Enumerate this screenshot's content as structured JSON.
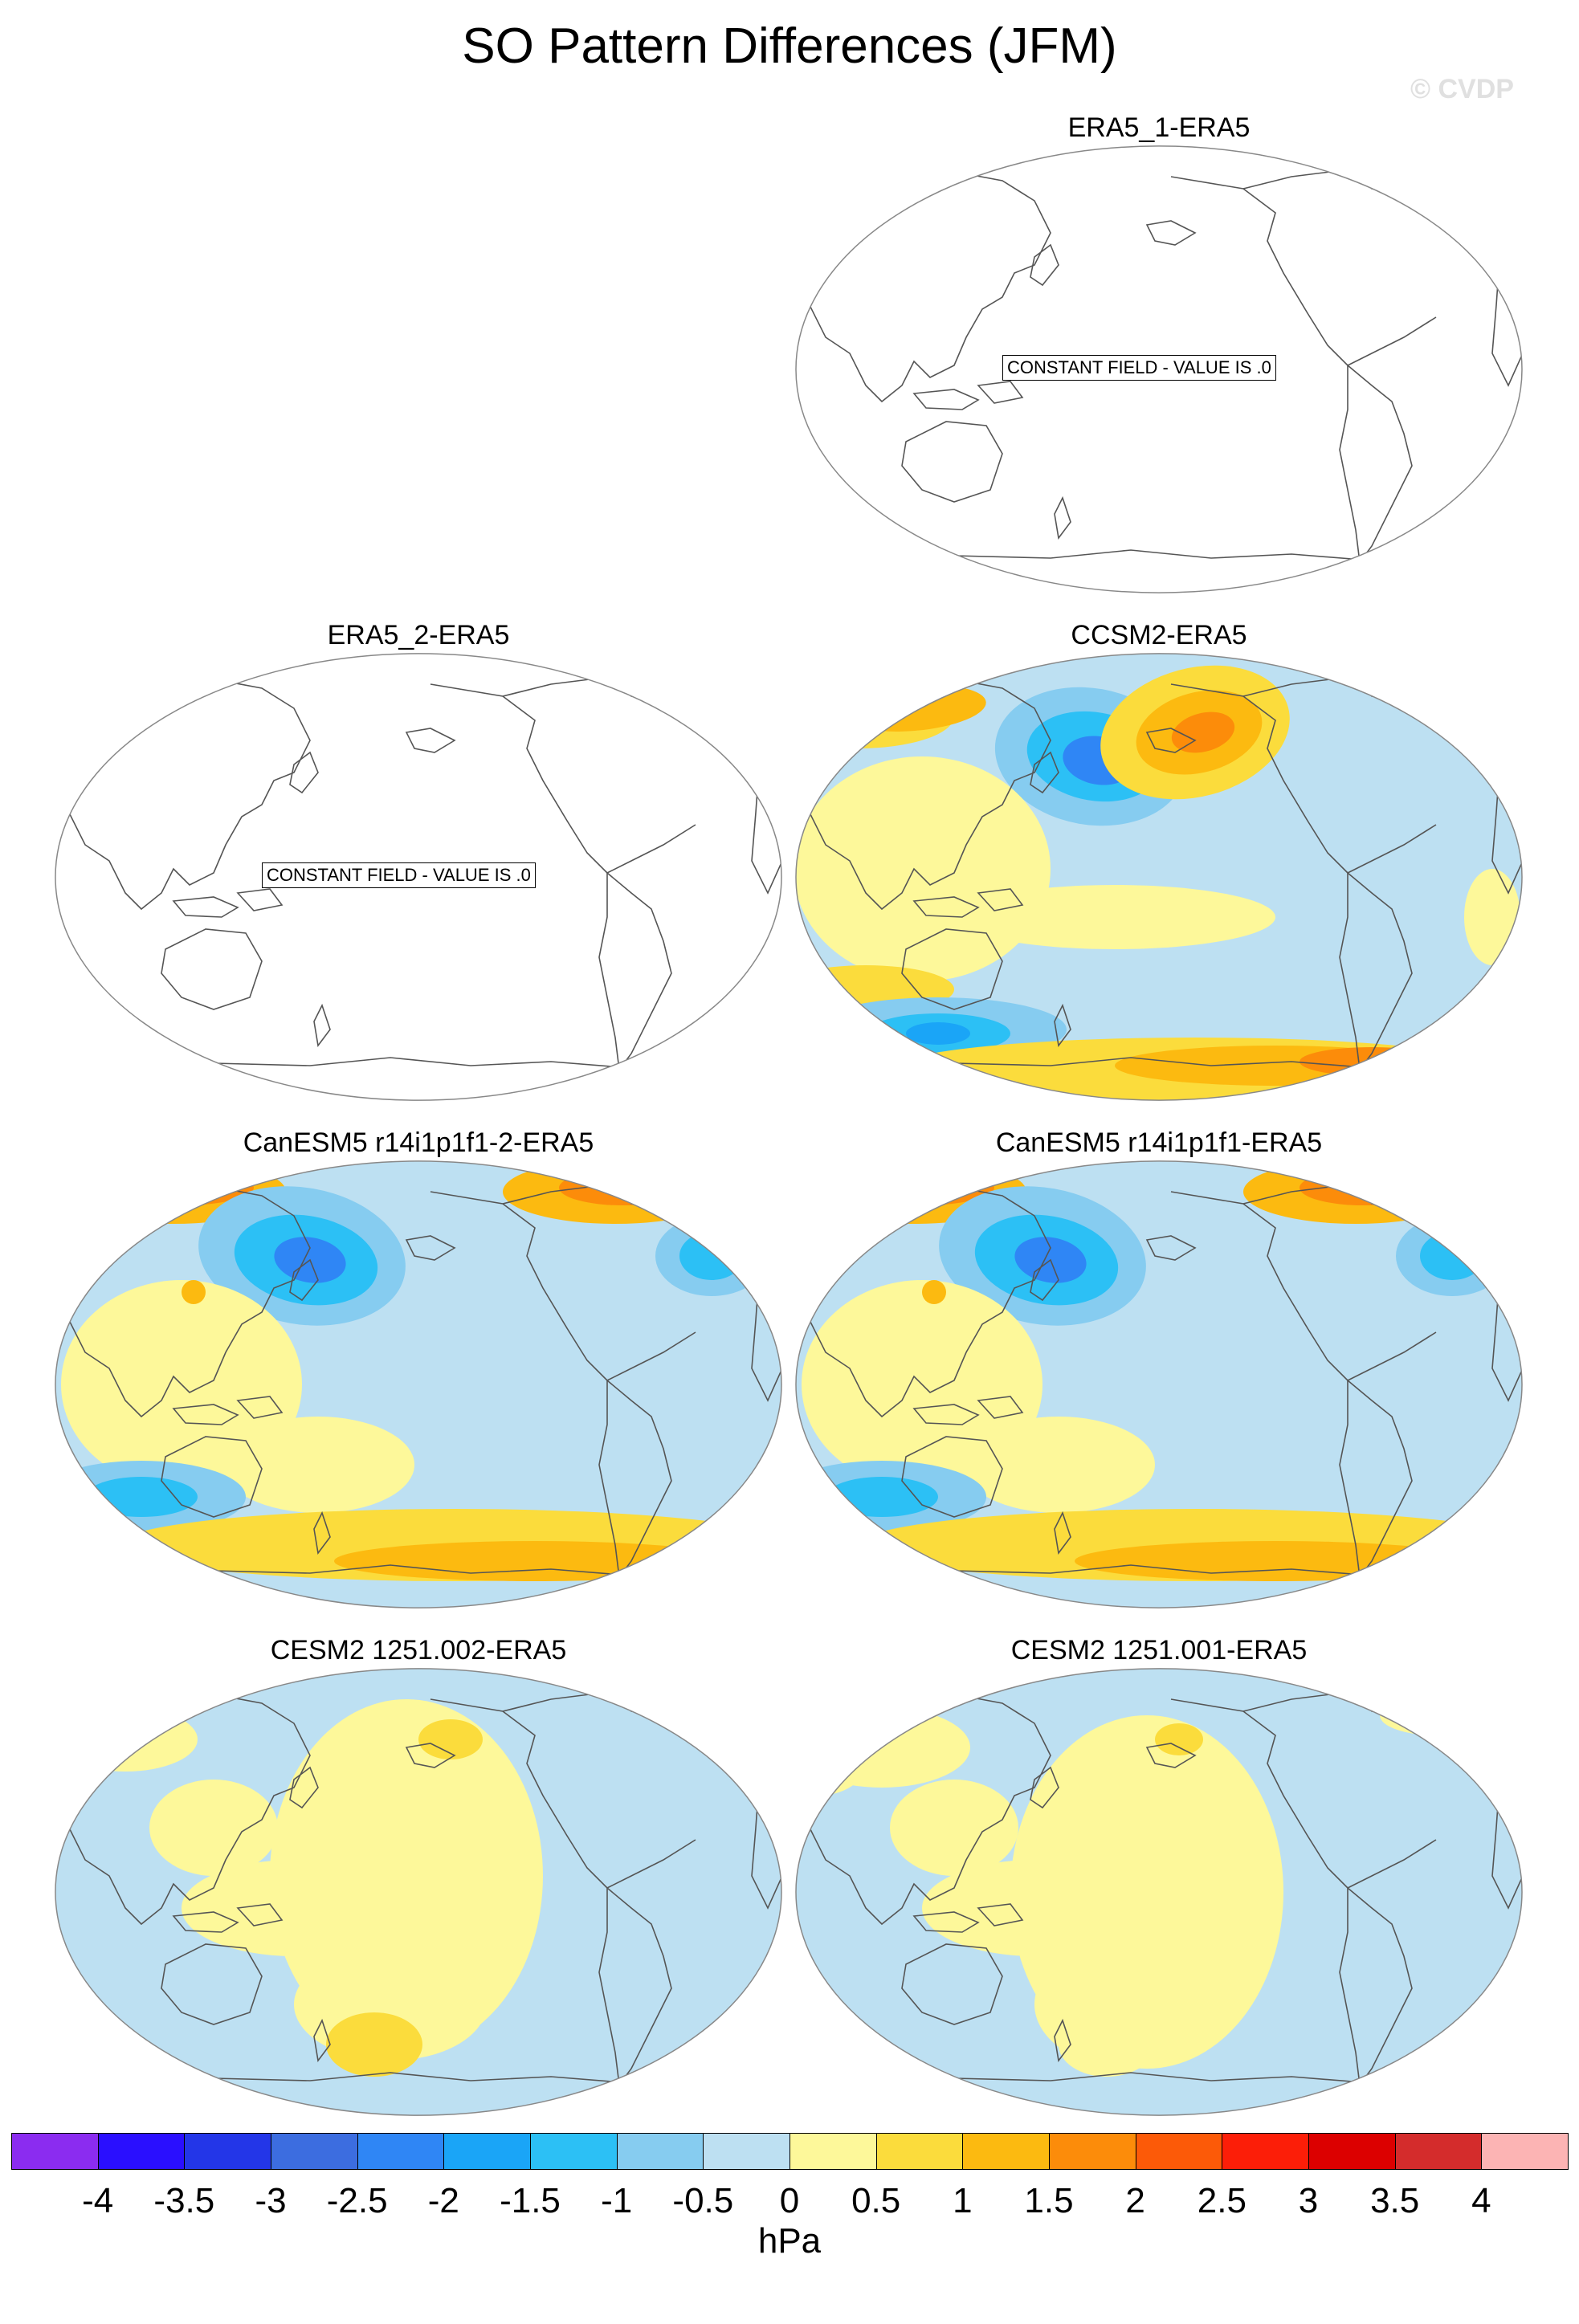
{
  "title": "SO Pattern Differences (JFM)",
  "credit": "© CVDP",
  "panels": [
    {
      "title": "ERA5_1-ERA5",
      "constant": true,
      "constant_label": "CONSTANT FIELD - VALUE IS .0"
    },
    {
      "title": "ERA5_2-ERA5",
      "constant": true,
      "constant_label": "CONSTANT FIELD - VALUE IS .0"
    },
    {
      "title": "CCSM2-ERA5",
      "constant": false
    },
    {
      "title": "CanESM5 r14i1p1f1-2-ERA5",
      "constant": false
    },
    {
      "title": "CanESM5 r14i1p1f1-ERA5",
      "constant": false
    },
    {
      "title": "CESM2 1251.002-ERA5",
      "constant": false
    },
    {
      "title": "CESM2 1251.001-ERA5",
      "constant": false
    }
  ],
  "colorbar": {
    "units": "hPa",
    "ticks": [
      "-4",
      "-3.5",
      "-3",
      "-2.5",
      "-2",
      "-1.5",
      "-1",
      "-0.5",
      "0",
      "0.5",
      "1",
      "1.5",
      "2",
      "2.5",
      "3",
      "3.5",
      "4"
    ],
    "colors": [
      "#8b2cf0",
      "#2a0fff",
      "#2336e8",
      "#3c6de0",
      "#2f86f5",
      "#1aa5f7",
      "#2cc0f5",
      "#86ccf0",
      "#bde0f2",
      "#fdf89a",
      "#fbdc3c",
      "#fcba10",
      "#fc8c0a",
      "#fc5a08",
      "#fc1e08",
      "#dc0000",
      "#d42c2c",
      "#fcb4b4"
    ]
  }
}
